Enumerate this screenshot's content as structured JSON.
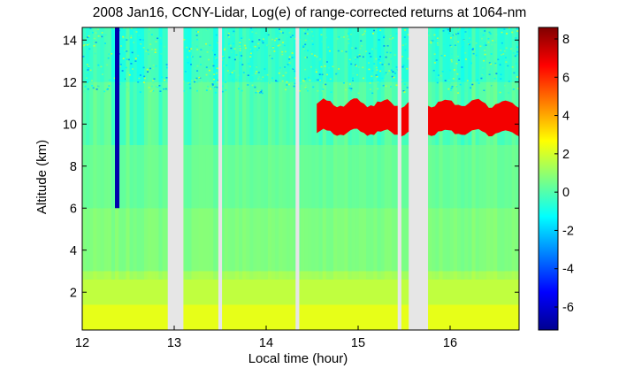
{
  "chart_data": {
    "type": "heatmap",
    "title": "2008 Jan16, CCNY-Lidar, Log(e) of range-corrected returns at 1064-nm",
    "xlabel": "Local time (hour)",
    "ylabel": "Altitude (km)",
    "xlim": [
      12.0,
      16.75
    ],
    "ylim": [
      0.2,
      14.6
    ],
    "x_ticks": [
      "12",
      "13",
      "14",
      "15",
      "16"
    ],
    "y_ticks": [
      "2",
      "4",
      "6",
      "8",
      "10",
      "12",
      "14"
    ],
    "colorbar": {
      "range": [
        -7.2,
        8.6
      ],
      "ticks": [
        "-6",
        "-4",
        "-2",
        "0",
        "2",
        "4",
        "6",
        "8"
      ],
      "colormap": "jet"
    },
    "data_gaps_hours": [
      [
        12.93,
        13.1
      ],
      [
        13.48,
        13.52
      ],
      [
        14.32,
        14.36
      ],
      [
        15.43,
        15.47
      ],
      [
        15.55,
        15.76
      ]
    ],
    "features": {
      "boundary_layer": {
        "top_km": 1.4,
        "log_value": 2.3
      },
      "cirrus_cloud": {
        "x_start_hour": 14.55,
        "x_end_hour": 16.75,
        "altitude_km": [
          9.6,
          11.0
        ],
        "log_value": 6.8
      },
      "low_signal_streak": {
        "x_hour": 12.38,
        "altitude_km": [
          6.0,
          14.6
        ],
        "log_value": -6.5
      },
      "background_aloft_log_value": 0.2
    }
  }
}
